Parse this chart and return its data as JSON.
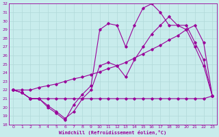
{
  "background_color": "#c8ecec",
  "grid_color": "#b0d8d8",
  "line_color": "#990099",
  "xlabel": "Windchill (Refroidissement éolien,°C)",
  "xlim": [
    -0.5,
    23.5
  ],
  "ylim": [
    18,
    32
  ],
  "yticks": [
    18,
    19,
    20,
    21,
    22,
    23,
    24,
    25,
    26,
    27,
    28,
    29,
    30,
    31,
    32
  ],
  "xticks": [
    0,
    1,
    2,
    3,
    4,
    5,
    6,
    7,
    8,
    9,
    10,
    11,
    12,
    13,
    14,
    15,
    16,
    17,
    18,
    19,
    20,
    21,
    22,
    23
  ],
  "series1_x": [
    0,
    1,
    2,
    3,
    4,
    5,
    6,
    7,
    8,
    9,
    10,
    11,
    12,
    13,
    14,
    15,
    16,
    17,
    18,
    19,
    20,
    21,
    22,
    23
  ],
  "series1_y": [
    22.0,
    21.7,
    21.0,
    21.0,
    21.0,
    21.0,
    21.0,
    21.0,
    21.0,
    21.0,
    21.0,
    21.0,
    21.0,
    21.0,
    21.0,
    21.0,
    21.0,
    21.0,
    21.0,
    21.0,
    21.0,
    21.0,
    21.0,
    21.3
  ],
  "series2_x": [
    0,
    1,
    2,
    3,
    4,
    5,
    6,
    7,
    8,
    9,
    10,
    11,
    12,
    13,
    14,
    15,
    16,
    17,
    18,
    19,
    20,
    21,
    22,
    23
  ],
  "series2_y": [
    22.0,
    21.7,
    21.0,
    21.0,
    20.0,
    19.3,
    18.5,
    20.3,
    21.5,
    22.5,
    29.0,
    29.7,
    29.5,
    27.0,
    29.5,
    31.5,
    32.0,
    31.0,
    29.5,
    29.5,
    29.0,
    27.0,
    24.8,
    21.3
  ],
  "series3_x": [
    0,
    1,
    2,
    3,
    4,
    5,
    6,
    7,
    8,
    9,
    10,
    11,
    12,
    13,
    14,
    15,
    16,
    17,
    18,
    19,
    20,
    21,
    22,
    23
  ],
  "series3_y": [
    22.0,
    21.7,
    21.0,
    21.0,
    20.2,
    19.5,
    18.7,
    19.5,
    21.0,
    22.0,
    24.8,
    25.2,
    24.8,
    23.5,
    25.5,
    27.0,
    28.5,
    29.5,
    30.5,
    29.5,
    29.5,
    27.5,
    25.5,
    21.3
  ],
  "series4_x": [
    0,
    1,
    2,
    3,
    4,
    5,
    6,
    7,
    8,
    9,
    10,
    11,
    12,
    13,
    14,
    15,
    16,
    17,
    18,
    19,
    20,
    21,
    22,
    23
  ],
  "series4_y": [
    22.0,
    22.0,
    22.0,
    22.3,
    22.5,
    22.7,
    23.0,
    23.3,
    23.5,
    23.8,
    24.1,
    24.5,
    24.8,
    25.2,
    25.7,
    26.2,
    26.7,
    27.2,
    27.8,
    28.3,
    29.0,
    29.5,
    27.5,
    21.3
  ]
}
